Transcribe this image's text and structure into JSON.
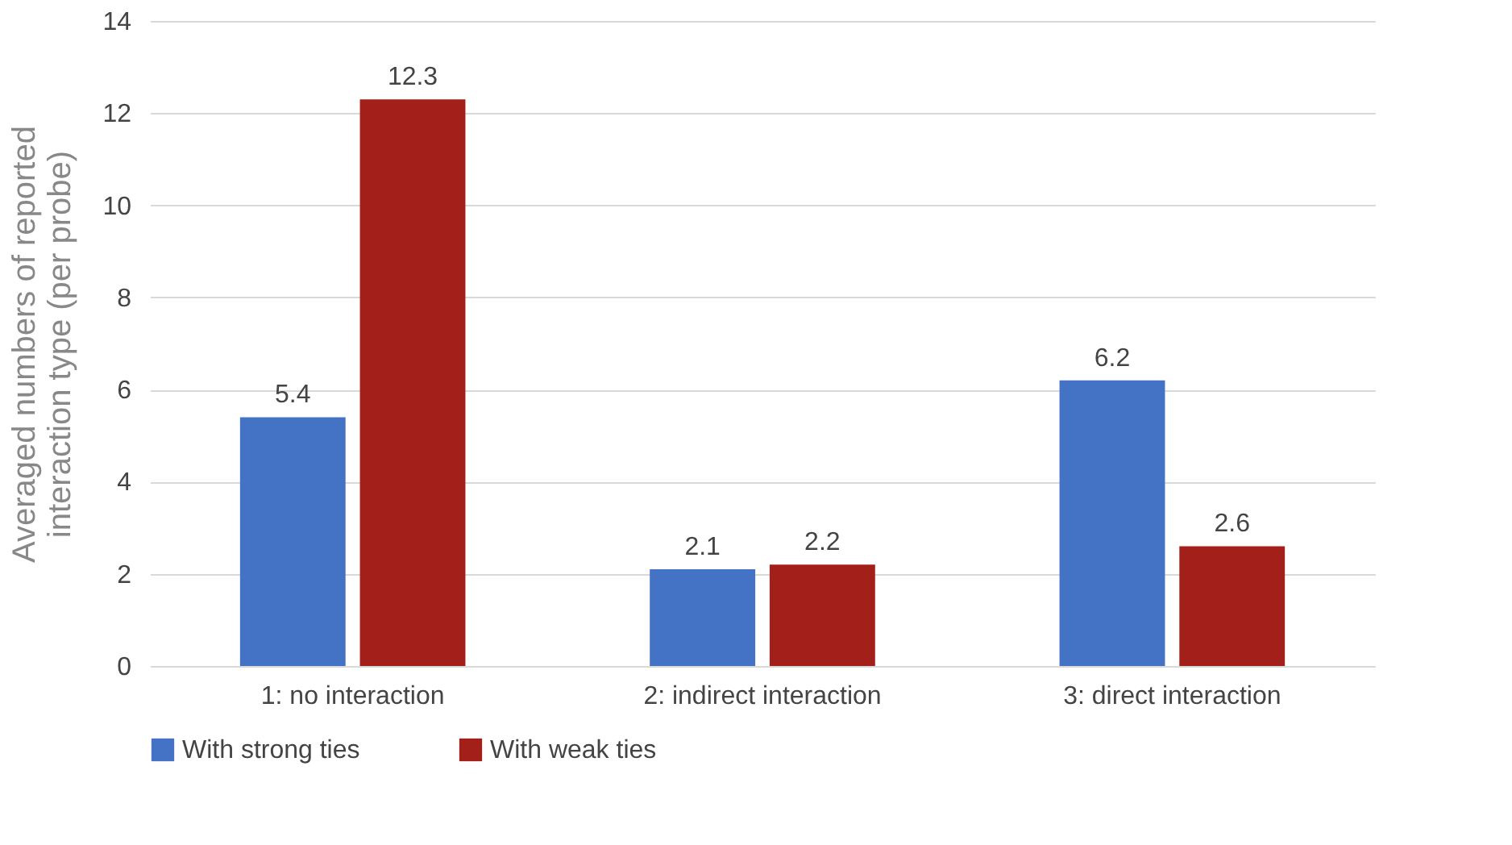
{
  "chart_data": {
    "type": "bar",
    "ylabel": "Averaged numbers of reported\ninteraction type (per probe)",
    "categories": [
      "1: no interaction",
      "2: indirect interaction",
      "3: direct interaction"
    ],
    "series": [
      {
        "name": "With strong ties",
        "color": "#4472c4",
        "values": [
          5.4,
          2.1,
          6.2
        ]
      },
      {
        "name": "With weak ties",
        "color": "#a31f1a",
        "values": [
          12.3,
          2.2,
          2.6
        ]
      }
    ],
    "ylim": [
      0,
      14
    ],
    "yticks": [
      0,
      2,
      4,
      6,
      8,
      10,
      12,
      14
    ],
    "grid": "y",
    "legend": "bottom",
    "data_labels": true
  }
}
